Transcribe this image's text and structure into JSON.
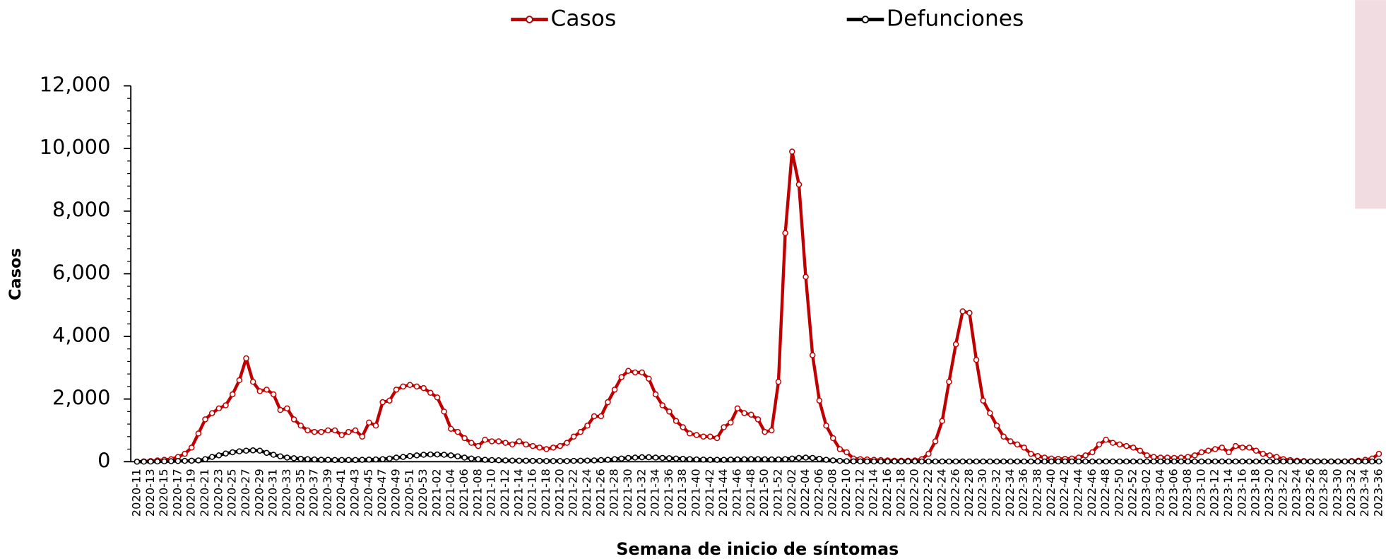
{
  "chart_data": {
    "type": "line",
    "x_label": "Semana de inicio de síntomas",
    "y_label": "Casos",
    "categories": [
      "2020-11",
      null,
      "2020-13",
      null,
      "2020-15",
      null,
      "2020-17",
      null,
      "2020-19",
      null,
      "2020-21",
      null,
      "2020-23",
      null,
      "2020-25",
      null,
      "2020-27",
      null,
      "2020-29",
      null,
      "2020-31",
      null,
      "2020-33",
      null,
      "2020-35",
      null,
      "2020-37",
      null,
      "2020-39",
      null,
      "2020-41",
      null,
      "2020-43",
      null,
      "2020-45",
      null,
      "2020-47",
      null,
      "2020-49",
      null,
      "2020-51",
      null,
      "2020-53",
      null,
      "2021-02",
      null,
      "2021-04",
      null,
      "2021-06",
      null,
      "2021-08",
      null,
      "2021-10",
      null,
      "2021-12",
      null,
      "2021-14",
      null,
      "2021-16",
      null,
      "2021-18",
      null,
      "2021-20",
      null,
      "2021-22",
      null,
      "2021-24",
      null,
      "2021-26",
      null,
      "2021-28",
      null,
      "2021-30",
      null,
      "2021-32",
      null,
      "2021-34",
      null,
      "2021-36",
      null,
      "2021-38",
      null,
      "2021-40",
      null,
      "2021-42",
      null,
      "2021-44",
      null,
      "2021-46",
      null,
      "2021-48",
      null,
      "2021-50",
      null,
      "2021-52",
      null,
      "2022-02",
      null,
      "2022-04",
      null,
      "2022-06",
      null,
      "2022-08",
      null,
      "2022-10",
      null,
      "2022-12",
      null,
      "2022-14",
      null,
      "2022-16",
      null,
      "2022-18",
      null,
      "2022-20",
      null,
      "2022-22",
      null,
      "2022-24",
      null,
      "2022-26",
      null,
      "2022-28",
      null,
      "2022-30",
      null,
      "2022-32",
      null,
      "2022-34",
      null,
      "2022-36",
      null,
      "2022-38",
      null,
      "2022-40",
      null,
      "2022-42",
      null,
      "2022-44",
      null,
      "2022-46",
      null,
      "2022-48",
      null,
      "2022-50",
      null,
      "2022-52",
      null,
      "2023-02",
      null,
      "2023-04",
      null,
      "2023-06",
      null,
      "2023-08",
      null,
      "2023-10",
      null,
      "2023-12",
      null,
      "2023-14",
      null,
      "2023-16",
      null,
      "2023-18",
      null,
      "2023-20",
      null,
      "2023-22",
      null,
      "2023-24",
      null,
      "2023-26",
      null,
      "2023-28",
      null,
      "2023-30",
      null,
      "2023-32",
      null,
      "2023-34",
      null,
      "2023-36"
    ],
    "series": [
      {
        "name": "Casos",
        "color": "#c00000",
        "values": [
          0,
          10,
          20,
          40,
          60,
          80,
          150,
          250,
          450,
          900,
          1350,
          1550,
          1700,
          1800,
          2150,
          2600,
          3300,
          2550,
          2250,
          2300,
          2150,
          1650,
          1700,
          1350,
          1150,
          1000,
          950,
          950,
          1000,
          1000,
          850,
          950,
          1000,
          800,
          1250,
          1150,
          1900,
          1950,
          2300,
          2400,
          2450,
          2400,
          2350,
          2200,
          2050,
          1600,
          1050,
          950,
          750,
          600,
          500,
          700,
          650,
          650,
          600,
          550,
          650,
          550,
          500,
          450,
          400,
          450,
          500,
          600,
          800,
          950,
          1150,
          1450,
          1450,
          1900,
          2300,
          2700,
          2900,
          2850,
          2850,
          2650,
          2150,
          1800,
          1600,
          1300,
          1100,
          900,
          850,
          800,
          800,
          750,
          1100,
          1250,
          1700,
          1550,
          1500,
          1350,
          950,
          1000,
          2550,
          7300,
          9900,
          8850,
          5900,
          3400,
          1950,
          1150,
          750,
          400,
          300,
          100,
          80,
          70,
          60,
          50,
          40,
          30,
          30,
          30,
          40,
          80,
          250,
          650,
          1300,
          2550,
          3750,
          4800,
          4750,
          3250,
          1950,
          1550,
          1150,
          800,
          650,
          550,
          450,
          250,
          180,
          130,
          100,
          90,
          90,
          100,
          130,
          200,
          300,
          550,
          700,
          600,
          550,
          500,
          450,
          350,
          200,
          150,
          130,
          130,
          120,
          130,
          150,
          200,
          300,
          350,
          400,
          450,
          300,
          500,
          450,
          450,
          350,
          250,
          200,
          150,
          80,
          50,
          30,
          20,
          10,
          10,
          5,
          5,
          5,
          10,
          20,
          30,
          60,
          100,
          250
        ]
      },
      {
        "name": "Defunciones",
        "color": "#000000",
        "values": [
          0,
          0,
          2,
          5,
          10,
          15,
          20,
          25,
          30,
          40,
          80,
          150,
          200,
          260,
          300,
          330,
          350,
          360,
          350,
          280,
          220,
          170,
          130,
          110,
          90,
          80,
          70,
          60,
          60,
          55,
          55,
          55,
          55,
          60,
          65,
          70,
          80,
          100,
          130,
          150,
          180,
          200,
          220,
          230,
          230,
          220,
          200,
          170,
          130,
          100,
          80,
          60,
          50,
          45,
          40,
          35,
          30,
          30,
          25,
          25,
          20,
          20,
          20,
          20,
          25,
          30,
          35,
          40,
          50,
          60,
          80,
          100,
          120,
          130,
          140,
          140,
          130,
          120,
          110,
          100,
          90,
          80,
          70,
          65,
          60,
          60,
          60,
          65,
          70,
          75,
          80,
          80,
          75,
          70,
          70,
          80,
          100,
          120,
          130,
          120,
          90,
          60,
          40,
          25,
          15,
          10,
          8,
          6,
          5,
          5,
          5,
          5,
          5,
          5,
          5,
          5,
          5,
          5,
          5,
          5,
          5,
          5,
          5,
          5,
          5,
          5,
          5,
          5,
          5,
          5,
          5,
          5,
          5,
          5,
          5,
          5,
          5,
          5,
          5,
          5,
          5,
          5,
          5,
          5,
          5,
          5,
          5,
          5,
          5,
          5,
          5,
          5,
          5,
          5,
          5,
          5,
          5,
          5,
          5,
          5,
          5,
          5,
          5,
          5,
          5,
          5,
          5,
          5,
          5,
          5,
          5,
          5,
          5,
          5,
          5,
          5,
          5,
          5,
          5,
          5,
          5,
          5,
          5
        ]
      }
    ],
    "ylim": [
      0,
      12000
    ],
    "yticks": [
      0,
      {
        "value": 2000,
        "label": "2,000"
      },
      {
        "value": 4000,
        "label": "4,000"
      },
      {
        "value": 6000,
        "label": "6,000"
      },
      {
        "value": 8000,
        "label": "8,000"
      },
      {
        "value": 10000,
        "label": "10,000"
      },
      {
        "value": 12000,
        "label": "12,000"
      }
    ],
    "legend": "top"
  }
}
